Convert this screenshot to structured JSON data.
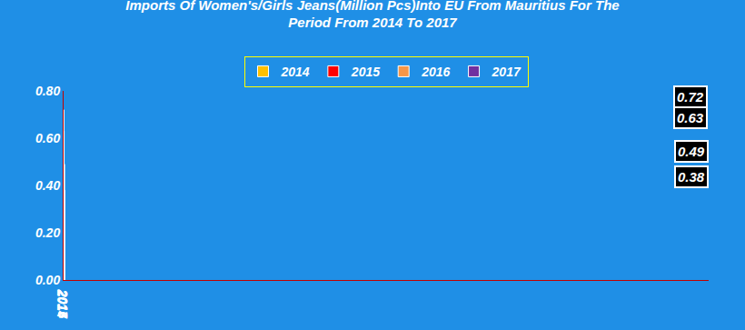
{
  "chart_data": {
    "type": "bar",
    "title": "Imports Of Women's/Girls Jeans(Million Pcs)Into EU From Mauritius For The\nPeriod From 2014 To 2017",
    "categories": [
      "2014",
      "2015",
      "2016",
      "2017"
    ],
    "values": [
      0.72,
      0.63,
      0.49,
      0.38
    ],
    "colors": [
      "#FFC000",
      "#FF0000",
      "#F79646",
      "#7030A0"
    ],
    "ylim": [
      0,
      0.8
    ],
    "yticks": [
      {
        "value": 0,
        "label": "0.00"
      },
      {
        "value": 0.2,
        "label": "0.20"
      },
      {
        "value": 0.4,
        "label": "0.40"
      },
      {
        "value": 0.6,
        "label": "0.60"
      },
      {
        "value": 0.8,
        "label": "0.80"
      }
    ],
    "grid": false,
    "legend": "top",
    "data_labels": true
  }
}
